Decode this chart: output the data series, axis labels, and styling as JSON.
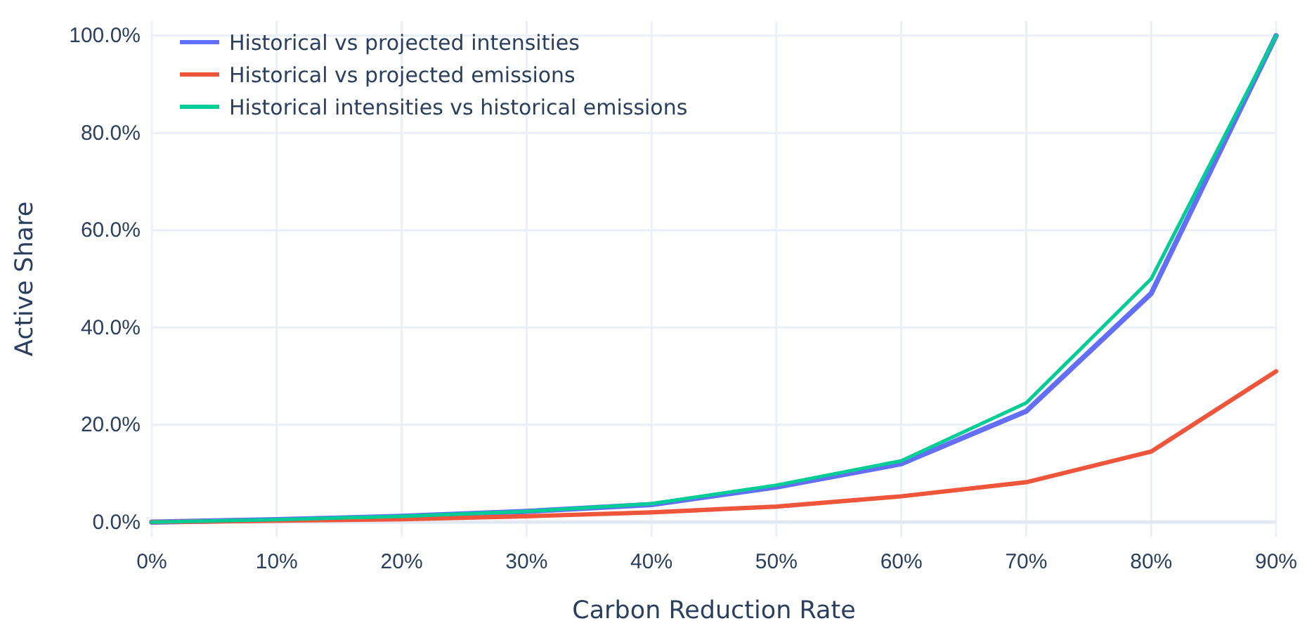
{
  "chart_data": {
    "type": "line",
    "xlabel": "Carbon Reduction Rate",
    "ylabel": "Active Share",
    "x": [
      0,
      10,
      20,
      30,
      40,
      50,
      60,
      70,
      80,
      90
    ],
    "series": [
      {
        "name": "Historical vs projected intensities",
        "color": "#636efa",
        "values": [
          0,
          0.5,
          1.2,
          2.2,
          3.6,
          7.2,
          12.0,
          22.8,
          47.0,
          100
        ]
      },
      {
        "name": "Historical vs projected emissions",
        "color": "#ef553b",
        "values": [
          0,
          0.3,
          0.6,
          1.2,
          2.0,
          3.2,
          5.3,
          8.2,
          14.5,
          31.0
        ]
      },
      {
        "name": "Historical intensities vs historical emissions",
        "color": "#00cc96",
        "values": [
          0,
          0.5,
          1.2,
          2.2,
          3.8,
          7.6,
          12.6,
          24.5,
          50.0,
          100
        ]
      }
    ],
    "xlim": [
      0,
      90
    ],
    "xticks": [
      {
        "value": 0,
        "label": "0%"
      },
      {
        "value": 10,
        "label": "10%"
      },
      {
        "value": 20,
        "label": "20%"
      },
      {
        "value": 30,
        "label": "30%"
      },
      {
        "value": 40,
        "label": "40%"
      },
      {
        "value": 50,
        "label": "50%"
      },
      {
        "value": 60,
        "label": "60%"
      },
      {
        "value": 70,
        "label": "70%"
      },
      {
        "value": 80,
        "label": "80%"
      },
      {
        "value": 90,
        "label": "90%"
      }
    ],
    "ylim": [
      -3,
      103
    ],
    "yticks": [
      {
        "value": 0,
        "label": "0.0%"
      },
      {
        "value": 20,
        "label": "20.0%"
      },
      {
        "value": 40,
        "label": "40.0%"
      },
      {
        "value": 60,
        "label": "60.0%"
      },
      {
        "value": 80,
        "label": "80.0%"
      },
      {
        "value": 100,
        "label": "100.0%"
      }
    ],
    "grid": true,
    "legend": "top left",
    "marker": "none",
    "line_style": "solid"
  }
}
